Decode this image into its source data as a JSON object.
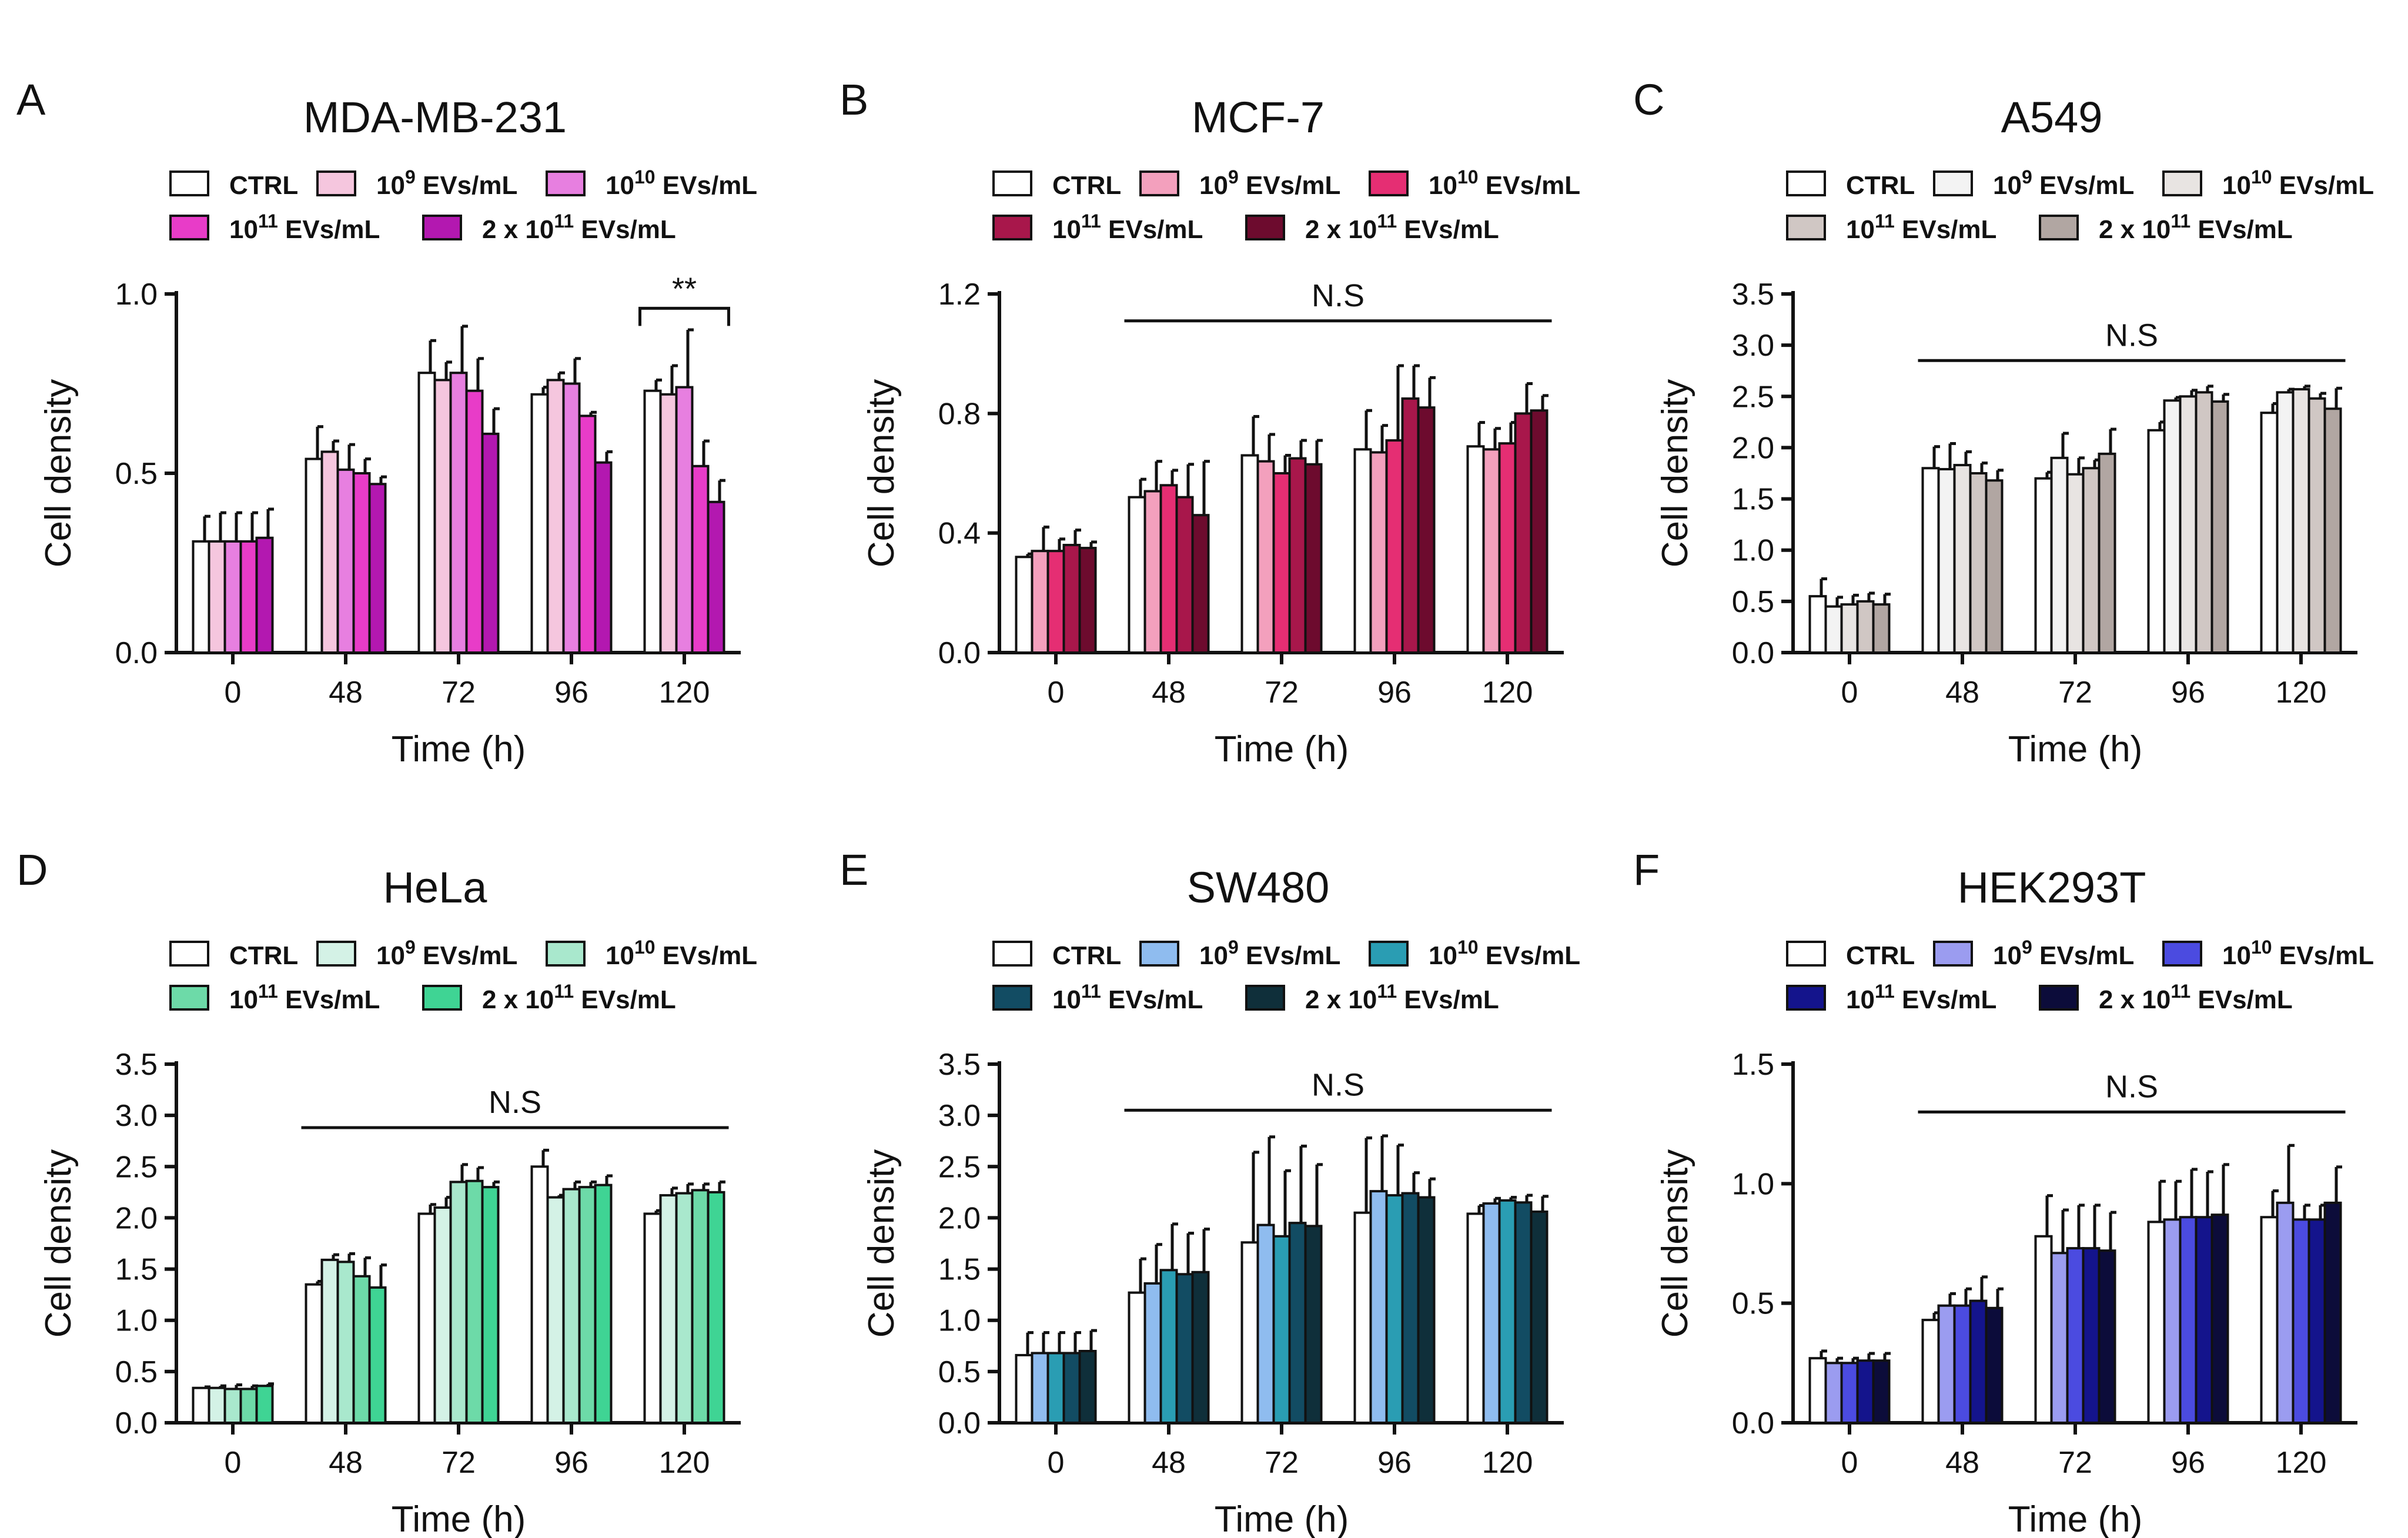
{
  "chart_data": [
    {
      "type": "bar",
      "panel_label": "A",
      "title": "MDA-MB-231",
      "xlabel": "Time (h)",
      "ylabel": "Cell density",
      "categories": [
        "0",
        "48",
        "72",
        "96",
        "120"
      ],
      "ylim": [
        0,
        1.0
      ],
      "yticks": [
        "0.0",
        "0.5",
        "1.0"
      ],
      "ytick_values": [
        0,
        0.5,
        1.0
      ],
      "legend": [
        {
          "label": "CTRL",
          "sup": ""
        },
        {
          "label": "EVs/mL",
          "base": "10",
          "sup": "9"
        },
        {
          "label": "EVs/mL",
          "base": "10",
          "sup": "10"
        },
        {
          "label": "EVs/mL",
          "base": "10",
          "sup": "11"
        },
        {
          "label": "EVs/mL",
          "base": "2 x 10",
          "sup": "11"
        }
      ],
      "colors": [
        "#ffffff",
        "#f5c6de",
        "#e77fe0",
        "#e83cc8",
        "#b318b0"
      ],
      "series": [
        {
          "name": "CTRL",
          "values": [
            0.31,
            0.54,
            0.78,
            0.72,
            0.73
          ],
          "errors": [
            0.07,
            0.09,
            0.09,
            0.02,
            0.03
          ]
        },
        {
          "name": "10^9 EVs/mL",
          "values": [
            0.31,
            0.56,
            0.76,
            0.76,
            0.72
          ],
          "errors": [
            0.08,
            0.03,
            0.05,
            0.02,
            0.08
          ]
        },
        {
          "name": "10^10 EVs/mL",
          "values": [
            0.31,
            0.51,
            0.78,
            0.75,
            0.74
          ],
          "errors": [
            0.08,
            0.07,
            0.13,
            0.07,
            0.16
          ]
        },
        {
          "name": "10^11 EVs/mL",
          "values": [
            0.31,
            0.5,
            0.73,
            0.66,
            0.52
          ],
          "errors": [
            0.08,
            0.04,
            0.09,
            0.01,
            0.07
          ]
        },
        {
          "name": "2 x 10^11 EVs/mL",
          "values": [
            0.32,
            0.47,
            0.61,
            0.53,
            0.42
          ],
          "errors": [
            0.08,
            0.02,
            0.07,
            0.03,
            0.06
          ]
        }
      ],
      "significance": {
        "label": "**",
        "style": "bracket",
        "from_category": "120",
        "to_category": "120",
        "y": 0.96
      }
    },
    {
      "type": "bar",
      "panel_label": "B",
      "title": "MCF-7",
      "xlabel": "Time (h)",
      "ylabel": "Cell density",
      "categories": [
        "0",
        "48",
        "72",
        "96",
        "120"
      ],
      "ylim": [
        0,
        1.2
      ],
      "yticks": [
        "0.0",
        "0.4",
        "0.8",
        "1.2"
      ],
      "ytick_values": [
        0,
        0.4,
        0.8,
        1.2
      ],
      "legend": [
        {
          "label": "CTRL",
          "sup": ""
        },
        {
          "label": "EVs/mL",
          "base": "10",
          "sup": "9"
        },
        {
          "label": "EVs/mL",
          "base": "10",
          "sup": "10"
        },
        {
          "label": "EVs/mL",
          "base": "10",
          "sup": "11"
        },
        {
          "label": "EVs/mL",
          "base": "2 x 10",
          "sup": "11"
        }
      ],
      "colors": [
        "#ffffff",
        "#f3a0bd",
        "#e52e73",
        "#a8174b",
        "#6d0b2e"
      ],
      "series": [
        {
          "name": "CTRL",
          "values": [
            0.32,
            0.52,
            0.66,
            0.68,
            0.69
          ],
          "errors": [
            0.01,
            0.06,
            0.13,
            0.13,
            0.08
          ]
        },
        {
          "name": "10^9 EVs/mL",
          "values": [
            0.34,
            0.54,
            0.64,
            0.67,
            0.68
          ],
          "errors": [
            0.08,
            0.1,
            0.09,
            0.09,
            0.07
          ]
        },
        {
          "name": "10^10 EVs/mL",
          "values": [
            0.34,
            0.56,
            0.6,
            0.71,
            0.7
          ],
          "errors": [
            0.04,
            0.05,
            0.06,
            0.25,
            0.07
          ]
        },
        {
          "name": "10^11 EVs/mL",
          "values": [
            0.36,
            0.52,
            0.65,
            0.85,
            0.8
          ],
          "errors": [
            0.05,
            0.11,
            0.06,
            0.11,
            0.1
          ]
        },
        {
          "name": "2 x 10^11 EVs/mL",
          "values": [
            0.35,
            0.46,
            0.63,
            0.82,
            0.81
          ],
          "errors": [
            0.02,
            0.18,
            0.08,
            0.1,
            0.05
          ]
        }
      ],
      "significance": {
        "label": "N.S",
        "style": "line",
        "from_category": "48",
        "to_category": "120",
        "y": 1.11
      }
    },
    {
      "type": "bar",
      "panel_label": "C",
      "title": "A549",
      "xlabel": "Time (h)",
      "ylabel": "Cell density",
      "categories": [
        "0",
        "48",
        "72",
        "96",
        "120"
      ],
      "ylim": [
        0,
        3.5
      ],
      "yticks": [
        "0.0",
        "0.5",
        "1.0",
        "1.5",
        "2.0",
        "2.5",
        "3.0",
        "3.5"
      ],
      "ytick_values": [
        0,
        0.5,
        1.0,
        1.5,
        2.0,
        2.5,
        3.0,
        3.5
      ],
      "legend": [
        {
          "label": "CTRL",
          "sup": ""
        },
        {
          "label": "EVs/mL",
          "base": "10",
          "sup": "9"
        },
        {
          "label": "EVs/mL",
          "base": "10",
          "sup": "10"
        },
        {
          "label": "EVs/mL",
          "base": "10",
          "sup": "11"
        },
        {
          "label": "EVs/mL",
          "base": "2 x 10",
          "sup": "11"
        }
      ],
      "colors": [
        "#ffffff",
        "#f3f3f3",
        "#e8e4e2",
        "#d0c7c4",
        "#b1a6a2"
      ],
      "series": [
        {
          "name": "CTRL",
          "values": [
            0.55,
            1.8,
            1.7,
            2.17,
            2.34
          ],
          "errors": [
            0.17,
            0.21,
            0.06,
            0.08,
            0.09
          ]
        },
        {
          "name": "10^9 EVs/mL",
          "values": [
            0.45,
            1.79,
            1.9,
            2.46,
            2.54
          ],
          "errors": [
            0.09,
            0.25,
            0.24,
            0.03,
            0.03
          ]
        },
        {
          "name": "10^10 EVs/mL",
          "values": [
            0.47,
            1.83,
            1.74,
            2.5,
            2.57
          ],
          "errors": [
            0.09,
            0.13,
            0.16,
            0.06,
            0.03
          ]
        },
        {
          "name": "10^11 EVs/mL",
          "values": [
            0.5,
            1.75,
            1.8,
            2.54,
            2.48
          ],
          "errors": [
            0.08,
            0.1,
            0.08,
            0.06,
            0.05
          ]
        },
        {
          "name": "2 x 10^11 EVs/mL",
          "values": [
            0.47,
            1.68,
            1.94,
            2.45,
            2.38
          ],
          "errors": [
            0.1,
            0.1,
            0.24,
            0.07,
            0.2
          ]
        }
      ],
      "significance": {
        "label": "N.S",
        "style": "line",
        "from_category": "48",
        "to_category": "120",
        "y": 2.85
      }
    },
    {
      "type": "bar",
      "panel_label": "D",
      "title": "HeLa",
      "xlabel": "Time (h)",
      "ylabel": "Cell density",
      "categories": [
        "0",
        "48",
        "72",
        "96",
        "120"
      ],
      "ylim": [
        0,
        3.5
      ],
      "yticks": [
        "0.0",
        "0.5",
        "1.0",
        "1.5",
        "2.0",
        "2.5",
        "3.0",
        "3.5"
      ],
      "ytick_values": [
        0,
        0.5,
        1.0,
        1.5,
        2.0,
        2.5,
        3.0,
        3.5
      ],
      "legend": [
        {
          "label": "CTRL",
          "sup": ""
        },
        {
          "label": "EVs/mL",
          "base": "10",
          "sup": "9"
        },
        {
          "label": "EVs/mL",
          "base": "10",
          "sup": "10"
        },
        {
          "label": "EVs/mL",
          "base": "10",
          "sup": "11"
        },
        {
          "label": "EVs/mL",
          "base": "2 x 10",
          "sup": "11"
        }
      ],
      "colors": [
        "#ffffff",
        "#d4f2e6",
        "#a9e8cd",
        "#6ddaa8",
        "#3fd494"
      ],
      "series": [
        {
          "name": "CTRL",
          "values": [
            0.34,
            1.35,
            2.04,
            2.5,
            2.04
          ],
          "errors": [
            0.01,
            0.03,
            0.09,
            0.16,
            0.03
          ]
        },
        {
          "name": "10^9 EVs/mL",
          "values": [
            0.34,
            1.59,
            2.1,
            2.2,
            2.22
          ],
          "errors": [
            0.02,
            0.05,
            0.1,
            0.02,
            0.07
          ]
        },
        {
          "name": "10^10 EVs/mL",
          "values": [
            0.33,
            1.57,
            2.35,
            2.28,
            2.24
          ],
          "errors": [
            0.04,
            0.08,
            0.17,
            0.07,
            0.09
          ]
        },
        {
          "name": "10^11 EVs/mL",
          "values": [
            0.33,
            1.43,
            2.36,
            2.3,
            2.27
          ],
          "errors": [
            0.03,
            0.18,
            0.13,
            0.05,
            0.06
          ]
        },
        {
          "name": "2 x 10^11 EVs/mL",
          "values": [
            0.36,
            1.32,
            2.3,
            2.32,
            2.25
          ],
          "errors": [
            0.02,
            0.22,
            0.05,
            0.09,
            0.1
          ]
        }
      ],
      "significance": {
        "label": "N.S",
        "style": "line",
        "from_category": "48",
        "to_category": "120",
        "y": 2.88
      }
    },
    {
      "type": "bar",
      "panel_label": "E",
      "title": "SW480",
      "xlabel": "Time (h)",
      "ylabel": "Cell density",
      "categories": [
        "0",
        "48",
        "72",
        "96",
        "120"
      ],
      "ylim": [
        0,
        3.5
      ],
      "yticks": [
        "0.0",
        "0.5",
        "1.0",
        "1.5",
        "2.0",
        "2.5",
        "3.0",
        "3.5"
      ],
      "ytick_values": [
        0,
        0.5,
        1.0,
        1.5,
        2.0,
        2.5,
        3.0,
        3.5
      ],
      "legend": [
        {
          "label": "CTRL",
          "sup": ""
        },
        {
          "label": "EVs/mL",
          "base": "10",
          "sup": "9"
        },
        {
          "label": "EVs/mL",
          "base": "10",
          "sup": "10"
        },
        {
          "label": "EVs/mL",
          "base": "10",
          "sup": "11"
        },
        {
          "label": "EVs/mL",
          "base": "2 x 10",
          "sup": "11"
        }
      ],
      "colors": [
        "#ffffff",
        "#8fbcef",
        "#2a9db3",
        "#124c63",
        "#0f2f3a"
      ],
      "series": [
        {
          "name": "CTRL",
          "values": [
            0.66,
            1.27,
            1.76,
            2.05,
            2.04
          ],
          "errors": [
            0.22,
            0.33,
            0.88,
            0.73,
            0.08
          ]
        },
        {
          "name": "10^9 EVs/mL",
          "values": [
            0.68,
            1.36,
            1.93,
            2.26,
            2.14
          ],
          "errors": [
            0.2,
            0.38,
            0.86,
            0.54,
            0.05
          ]
        },
        {
          "name": "10^10 EVs/mL",
          "values": [
            0.68,
            1.49,
            1.82,
            2.22,
            2.17
          ],
          "errors": [
            0.2,
            0.45,
            0.64,
            0.49,
            0.03
          ]
        },
        {
          "name": "10^11 EVs/mL",
          "values": [
            0.68,
            1.45,
            1.95,
            2.24,
            2.15
          ],
          "errors": [
            0.2,
            0.4,
            0.75,
            0.2,
            0.07
          ]
        },
        {
          "name": "2 x 10^11 EVs/mL",
          "values": [
            0.7,
            1.47,
            1.92,
            2.2,
            2.06
          ],
          "errors": [
            0.2,
            0.42,
            0.6,
            0.18,
            0.15
          ]
        }
      ],
      "significance": {
        "label": "N.S",
        "style": "line",
        "from_category": "48",
        "to_category": "120",
        "y": 3.05
      }
    },
    {
      "type": "bar",
      "panel_label": "F",
      "title": "HEK293T",
      "xlabel": "Time (h)",
      "ylabel": "Cell density",
      "categories": [
        "0",
        "48",
        "72",
        "96",
        "120"
      ],
      "ylim": [
        0,
        1.5
      ],
      "yticks": [
        "0.0",
        "0.5",
        "1.0",
        "1.5"
      ],
      "ytick_values": [
        0,
        0.5,
        1.0,
        1.5
      ],
      "legend": [
        {
          "label": "CTRL",
          "sup": ""
        },
        {
          "label": "EVs/mL",
          "base": "10",
          "sup": "9"
        },
        {
          "label": "EVs/mL",
          "base": "10",
          "sup": "10"
        },
        {
          "label": "EVs/mL",
          "base": "10",
          "sup": "11"
        },
        {
          "label": "EVs/mL",
          "base": "2 x 10",
          "sup": "11"
        }
      ],
      "colors": [
        "#ffffff",
        "#9b9cf0",
        "#4b4be0",
        "#14148c",
        "#0c0c3a"
      ],
      "series": [
        {
          "name": "CTRL",
          "values": [
            0.27,
            0.43,
            0.78,
            0.84,
            0.86
          ],
          "errors": [
            0.03,
            0.03,
            0.17,
            0.17,
            0.11
          ]
        },
        {
          "name": "10^9 EVs/mL",
          "values": [
            0.25,
            0.49,
            0.71,
            0.85,
            0.92
          ],
          "errors": [
            0.02,
            0.05,
            0.18,
            0.16,
            0.24
          ]
        },
        {
          "name": "10^10 EVs/mL",
          "values": [
            0.25,
            0.49,
            0.73,
            0.86,
            0.85
          ],
          "errors": [
            0.02,
            0.07,
            0.18,
            0.2,
            0.06
          ]
        },
        {
          "name": "10^11 EVs/mL",
          "values": [
            0.26,
            0.51,
            0.73,
            0.86,
            0.85
          ],
          "errors": [
            0.03,
            0.1,
            0.18,
            0.19,
            0.06
          ]
        },
        {
          "name": "2 x 10^11 EVs/mL",
          "values": [
            0.26,
            0.48,
            0.72,
            0.87,
            0.92
          ],
          "errors": [
            0.03,
            0.08,
            0.16,
            0.21,
            0.15
          ]
        }
      ],
      "significance": {
        "label": "N.S",
        "style": "line",
        "from_category": "48",
        "to_category": "120",
        "y": 1.3
      }
    }
  ]
}
